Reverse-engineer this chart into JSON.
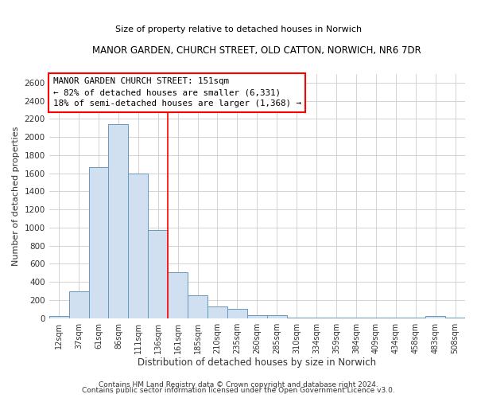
{
  "title": "MANOR GARDEN, CHURCH STREET, OLD CATTON, NORWICH, NR6 7DR",
  "subtitle": "Size of property relative to detached houses in Norwich",
  "xlabel": "Distribution of detached houses by size in Norwich",
  "ylabel": "Number of detached properties",
  "bar_color": "#d0e0f0",
  "bar_edge_color": "#6699bb",
  "categories": [
    "12sqm",
    "37sqm",
    "61sqm",
    "86sqm",
    "111sqm",
    "136sqm",
    "161sqm",
    "185sqm",
    "210sqm",
    "235sqm",
    "260sqm",
    "285sqm",
    "310sqm",
    "334sqm",
    "359sqm",
    "384sqm",
    "409sqm",
    "434sqm",
    "458sqm",
    "483sqm",
    "508sqm"
  ],
  "values": [
    22,
    295,
    1670,
    2140,
    1595,
    970,
    505,
    250,
    125,
    100,
    30,
    30,
    5,
    5,
    5,
    2,
    2,
    2,
    2,
    20,
    2
  ],
  "ylim": [
    0,
    2700
  ],
  "yticks": [
    0,
    200,
    400,
    600,
    800,
    1000,
    1200,
    1400,
    1600,
    1800,
    2000,
    2200,
    2400,
    2600
  ],
  "annotation_lines": [
    "MANOR GARDEN CHURCH STREET: 151sqm",
    "← 82% of detached houses are smaller (6,331)",
    "18% of semi-detached houses are larger (1,368) →"
  ],
  "footer_lines": [
    "Contains HM Land Registry data © Crown copyright and database right 2024.",
    "Contains public sector information licensed under the Open Government Licence v3.0."
  ],
  "background_color": "#ffffff",
  "plot_bg_color": "#ffffff",
  "grid_color": "#cccccc",
  "red_line_index": 6
}
